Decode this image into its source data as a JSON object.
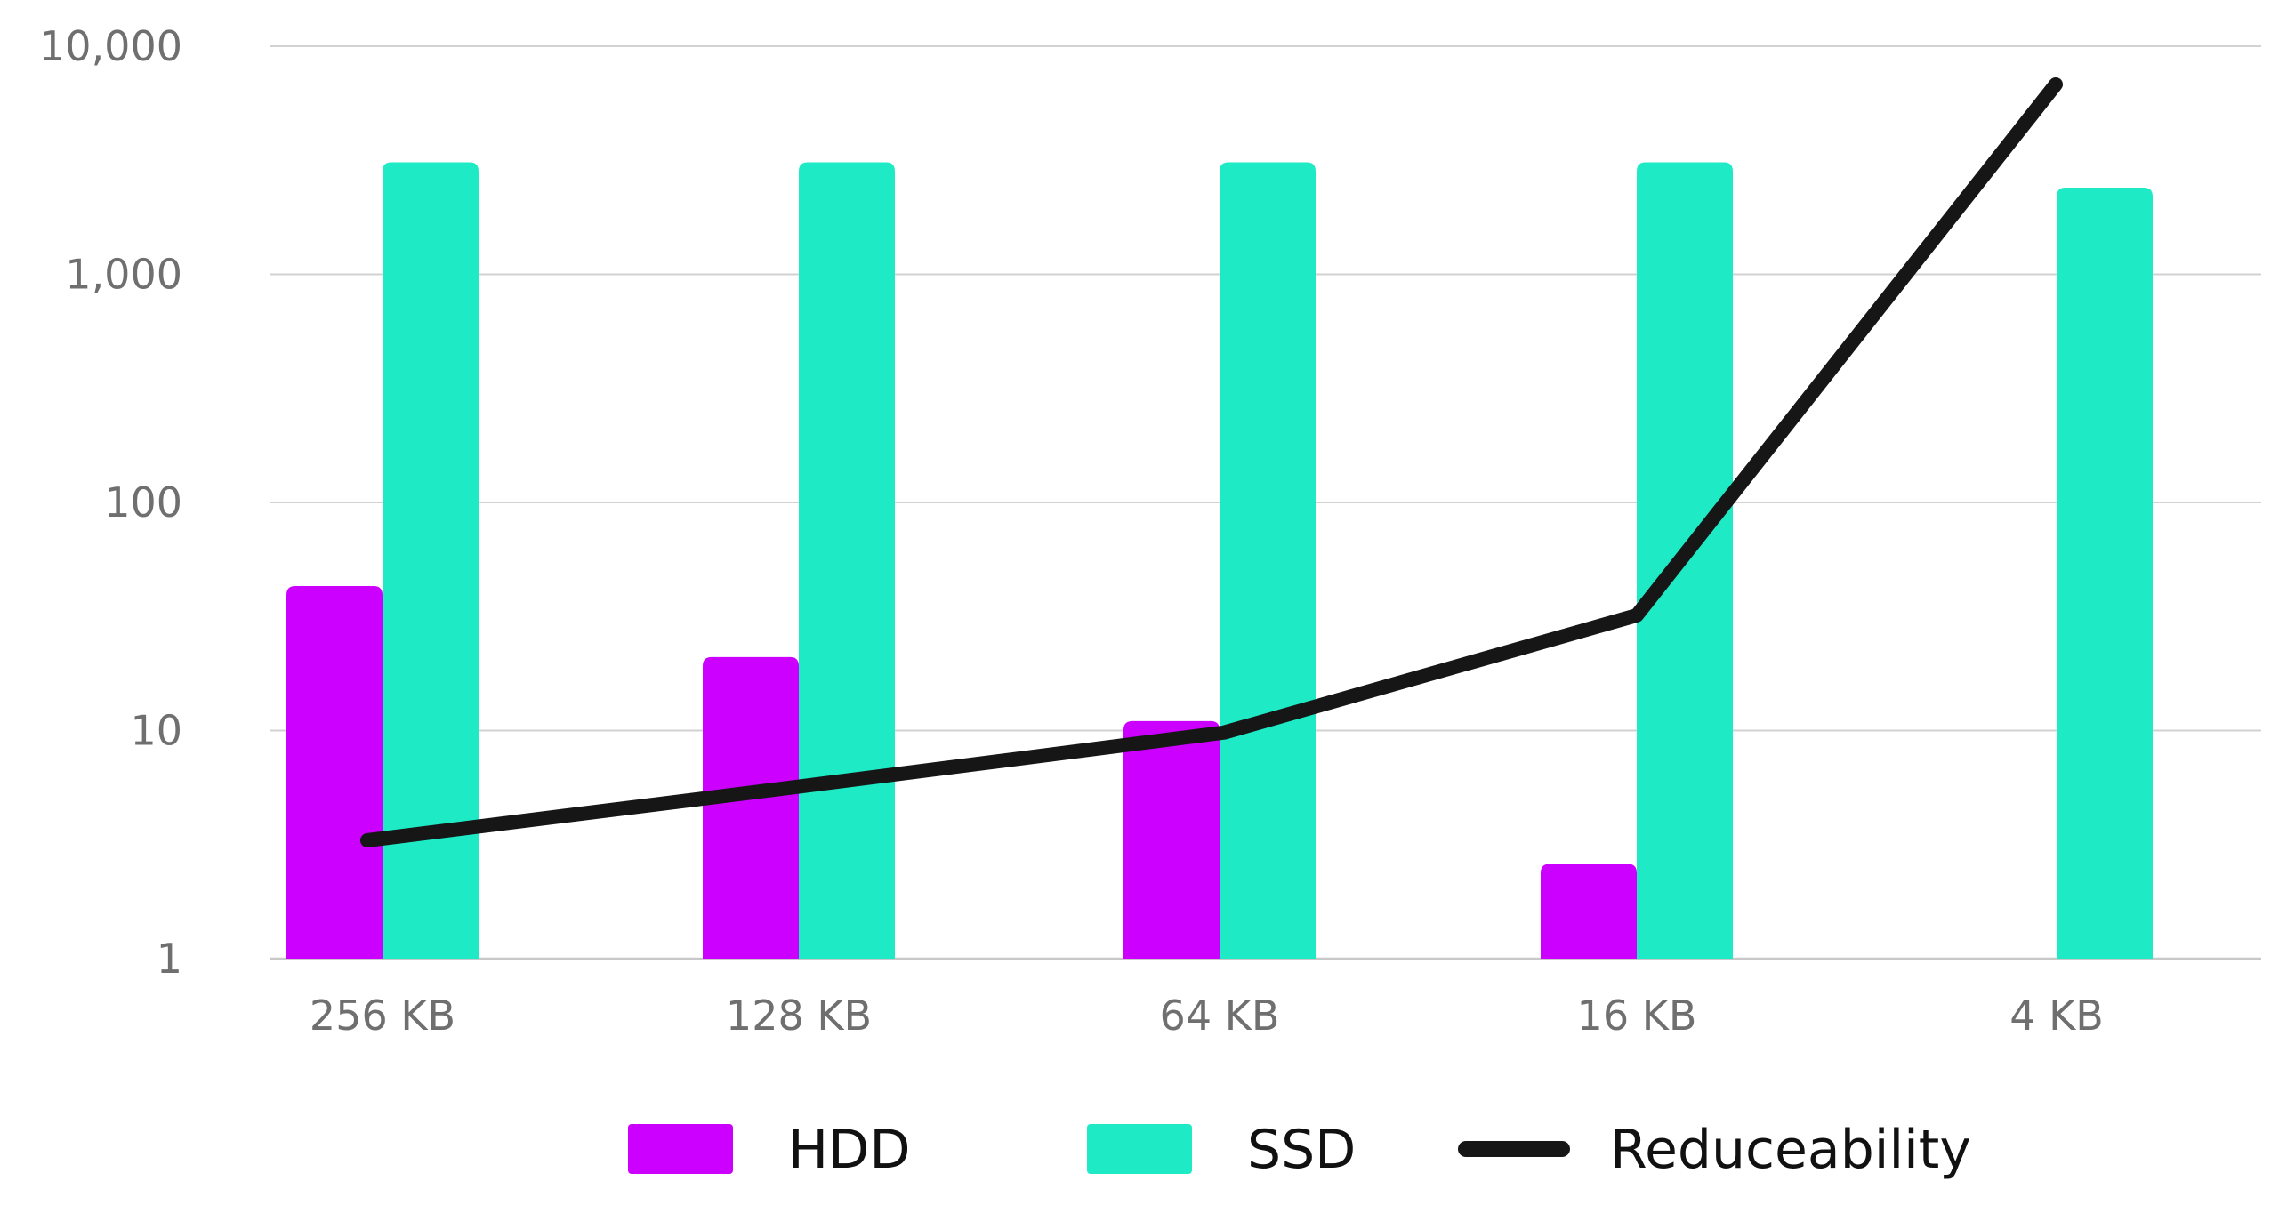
{
  "chart_data": {
    "type": "bar",
    "y_scale": "log",
    "ylim": [
      1,
      10000
    ],
    "y_ticks": [
      {
        "value": 1,
        "label": "1"
      },
      {
        "value": 10,
        "label": "10"
      },
      {
        "value": 100,
        "label": "100"
      },
      {
        "value": 1000,
        "label": "1,000"
      },
      {
        "value": 10000,
        "label": "10,000"
      }
    ],
    "categories": [
      "256 KB",
      "128 KB",
      "64 KB",
      "16 KB",
      "4 KB"
    ],
    "series": [
      {
        "name": "HDD",
        "kind": "bar",
        "color": "#cc00ff",
        "values": [
          43,
          21,
          11,
          2.6,
          null
        ]
      },
      {
        "name": "SSD",
        "kind": "bar",
        "color": "#1eebc6",
        "values": [
          3100,
          3100,
          3100,
          3100,
          2400
        ]
      },
      {
        "name": "Reduceability",
        "kind": "line",
        "color": "#161616",
        "values": [
          3.3,
          5.5,
          9.8,
          32,
          6800
        ]
      }
    ],
    "grid": true,
    "legend_position": "bottom-center"
  }
}
